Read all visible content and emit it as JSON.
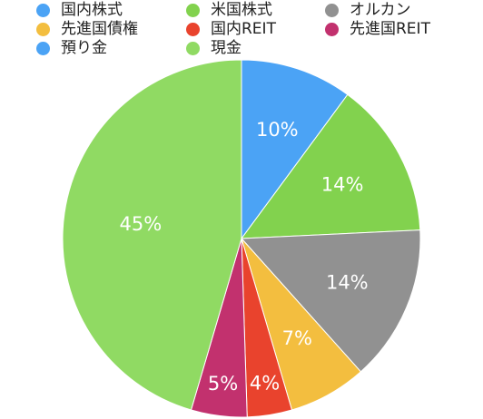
{
  "chart_data": {
    "type": "pie",
    "categories": [
      "国内株式",
      "米国株式",
      "オルカン",
      "先進国債権",
      "国内REIT",
      "先進国REIT",
      "預り金",
      "現金"
    ],
    "values": [
      10,
      14,
      14,
      7,
      4,
      5,
      0,
      45
    ],
    "value_labels": [
      "10%",
      "14%",
      "14%",
      "7%",
      "4%",
      "5%",
      "",
      "45%"
    ],
    "colors": [
      "#4BA3F5",
      "#82D24E",
      "#919191",
      "#F3BE3F",
      "#E9432D",
      "#C2316E",
      "#4BA3F5",
      "#90DA63"
    ],
    "legend_placement": "top",
    "start_angle": "12 o'clock, clockwise"
  }
}
